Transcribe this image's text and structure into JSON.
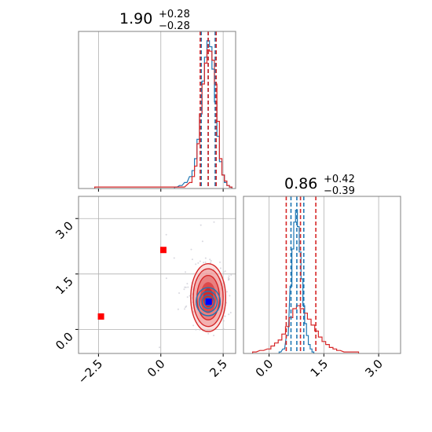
{
  "chart_data": {
    "type": "corner",
    "colors": {
      "red": "#d62728",
      "blue": "#1f77b4",
      "marker_red": "#ff0000",
      "marker_blue": "#0000ff",
      "grid": "#b0b0b0"
    },
    "panels": [
      {
        "id": "hist-param1",
        "type": "histogram",
        "title": {
          "value": "1.90",
          "plus": "+0.28",
          "minus": "−0.28"
        },
        "xlim": [
          -3.3,
          3.0
        ],
        "xticks": [
          -2.5,
          0.0,
          2.5
        ],
        "show_tick_labels": false,
        "series": [
          {
            "name": "",
            "color": "#1f77b4",
            "bins": [
              [
                0.6,
                0.01
              ],
              [
                0.8,
                0.02
              ],
              [
                1.0,
                0.04
              ],
              [
                1.2,
                0.08
              ],
              [
                1.3,
                0.12
              ],
              [
                1.4,
                0.2
              ],
              [
                1.5,
                0.33
              ],
              [
                1.6,
                0.5
              ],
              [
                1.7,
                0.72
              ],
              [
                1.8,
                0.88
              ],
              [
                1.9,
                0.99
              ],
              [
                2.0,
                0.95
              ],
              [
                2.1,
                0.8
              ],
              [
                2.2,
                0.58
              ],
              [
                2.3,
                0.35
              ],
              [
                2.4,
                0.18
              ],
              [
                2.5,
                0.09
              ],
              [
                2.6,
                0.04
              ],
              [
                2.7,
                0.02
              ],
              [
                2.8,
                0.01
              ]
            ],
            "quantiles": [
              1.62,
              1.9,
              2.18
            ]
          },
          {
            "name": "",
            "color": "#d62728",
            "bins": [
              [
                -2.6,
                0.01
              ],
              [
                -2.0,
                0.01
              ],
              [
                -1.0,
                0.01
              ],
              [
                0.3,
                0.01
              ],
              [
                0.9,
                0.01
              ],
              [
                1.2,
                0.04
              ],
              [
                1.3,
                0.08
              ],
              [
                1.4,
                0.15
              ],
              [
                1.5,
                0.3
              ],
              [
                1.6,
                0.5
              ],
              [
                1.7,
                0.7
              ],
              [
                1.8,
                0.84
              ],
              [
                1.9,
                0.93
              ],
              [
                2.0,
                0.92
              ],
              [
                2.1,
                0.86
              ],
              [
                2.2,
                0.7
              ],
              [
                2.3,
                0.45
              ],
              [
                2.4,
                0.2
              ],
              [
                2.5,
                0.09
              ],
              [
                2.6,
                0.05
              ],
              [
                2.7,
                0.02
              ],
              [
                2.8,
                0.01
              ]
            ],
            "quantiles": [
              1.58,
              1.9,
              2.22
            ]
          }
        ]
      },
      {
        "id": "hist-param2",
        "type": "histogram",
        "title": {
          "value": "0.86",
          "plus": "+0.42",
          "minus": "−0.39"
        },
        "xlim": [
          -0.7,
          3.6
        ],
        "xticks": [
          0.0,
          1.5,
          3.0
        ],
        "tick_labels": [
          "0.0",
          "1.5",
          "3.0"
        ],
        "series": [
          {
            "name": "",
            "color": "#1f77b4",
            "bins": [
              [
                0.3,
                0.01
              ],
              [
                0.4,
                0.03
              ],
              [
                0.5,
                0.12
              ],
              [
                0.6,
                0.45
              ],
              [
                0.65,
                0.7
              ],
              [
                0.7,
                0.88
              ],
              [
                0.75,
                0.96
              ],
              [
                0.8,
                0.85
              ],
              [
                0.85,
                0.68
              ],
              [
                0.9,
                0.5
              ],
              [
                0.95,
                0.32
              ],
              [
                1.0,
                0.2
              ],
              [
                1.05,
                0.12
              ],
              [
                1.1,
                0.06
              ],
              [
                1.15,
                0.03
              ],
              [
                1.2,
                0.01
              ]
            ],
            "quantiles": [
              0.6,
              0.76,
              0.95
            ]
          },
          {
            "name": "",
            "color": "#d62728",
            "bins": [
              [
                -0.4,
                0.01
              ],
              [
                -0.2,
                0.02
              ],
              [
                0.0,
                0.03
              ],
              [
                0.1,
                0.05
              ],
              [
                0.2,
                0.07
              ],
              [
                0.3,
                0.09
              ],
              [
                0.4,
                0.13
              ],
              [
                0.5,
                0.18
              ],
              [
                0.6,
                0.24
              ],
              [
                0.7,
                0.3
              ],
              [
                0.8,
                0.32
              ],
              [
                0.9,
                0.3
              ],
              [
                1.0,
                0.27
              ],
              [
                1.1,
                0.23
              ],
              [
                1.2,
                0.19
              ],
              [
                1.3,
                0.15
              ],
              [
                1.4,
                0.11
              ],
              [
                1.5,
                0.08
              ],
              [
                1.6,
                0.06
              ],
              [
                1.7,
                0.04
              ],
              [
                1.8,
                0.03
              ],
              [
                1.9,
                0.02
              ],
              [
                2.1,
                0.01
              ],
              [
                2.4,
                0.01
              ]
            ],
            "quantiles": [
              0.47,
              0.86,
              1.28
            ]
          }
        ]
      },
      {
        "id": "scatter-2d",
        "type": "contour",
        "xlim": [
          -3.3,
          3.0
        ],
        "ylim": [
          -0.65,
          3.6
        ],
        "xticks": [
          -2.5,
          0.0,
          2.5
        ],
        "xtick_labels": [
          "−2.5",
          "0.0",
          "2.5"
        ],
        "yticks": [
          0.0,
          1.5,
          3.0
        ],
        "ytick_labels": [
          "0.0",
          "1.5",
          "3.0"
        ],
        "red_contours": {
          "center": [
            1.9,
            0.86
          ],
          "radii": [
            [
              0.7,
              0.92
            ],
            [
              0.6,
              0.78
            ],
            [
              0.45,
              0.6
            ],
            [
              0.32,
              0.42
            ],
            [
              0.2,
              0.26
            ]
          ]
        },
        "blue_contours": {
          "center": [
            1.9,
            0.75
          ],
          "radii": [
            [
              0.48,
              0.38
            ],
            [
              0.36,
              0.28
            ],
            [
              0.24,
              0.18
            ],
            [
              0.13,
              0.1
            ]
          ]
        },
        "red_markers": [
          [
            -2.4,
            0.35
          ],
          [
            0.1,
            2.15
          ]
        ],
        "blue_markers": [
          [
            1.92,
            0.75
          ]
        ]
      }
    ]
  }
}
